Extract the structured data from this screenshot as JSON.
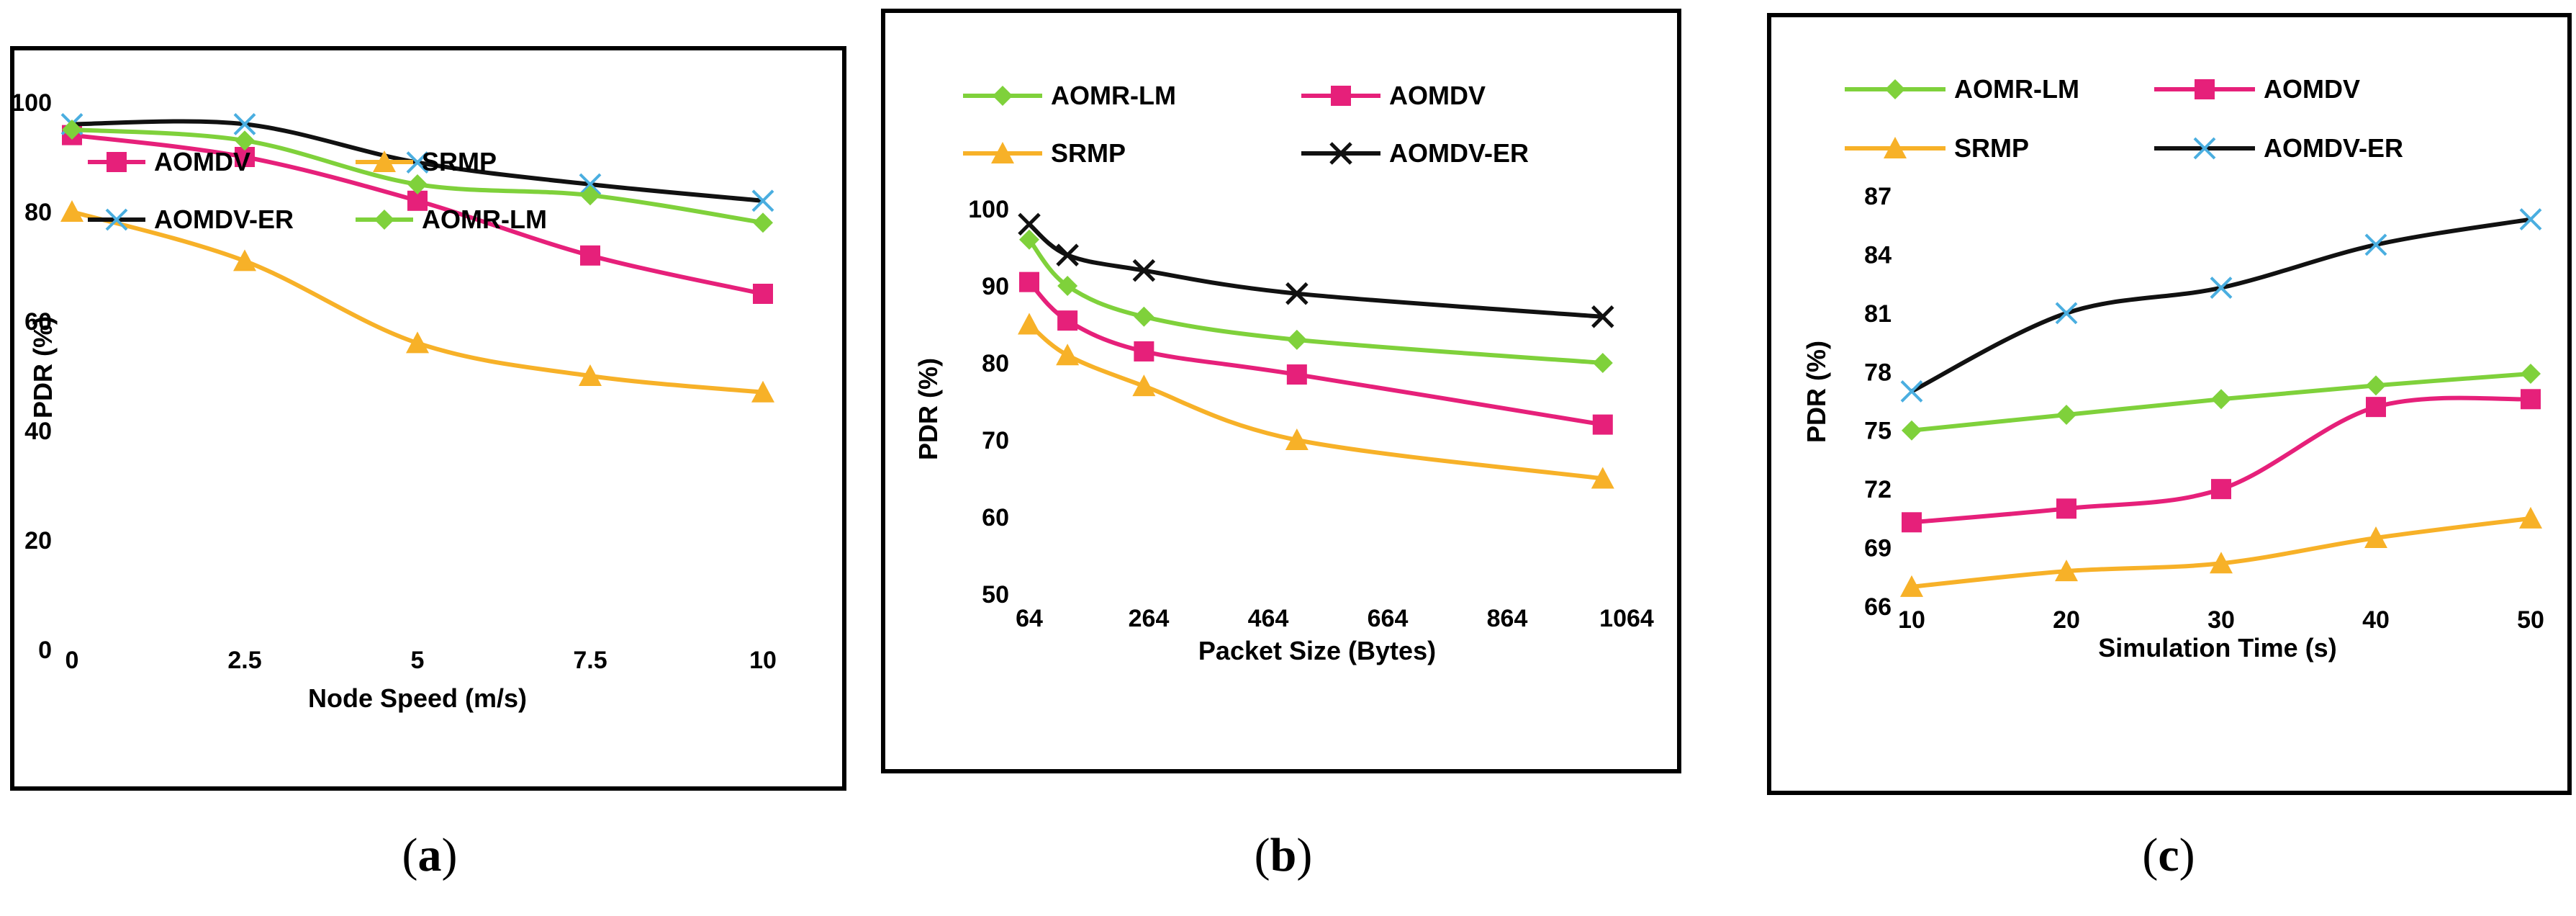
{
  "colors": {
    "AOMDV": "#e6207a",
    "SRMP": "#f7b128",
    "AOMDV-ER": "#111111",
    "AOMDV-ER_marker": "#4aaee0",
    "AOMR-LM": "#7fd13b"
  },
  "captions": {
    "a": {
      "open": "(",
      "letter": "a",
      "close": ")"
    },
    "b": {
      "open": "(",
      "letter": "b",
      "close": ")"
    },
    "c": {
      "open": "(",
      "letter": "c",
      "close": ")"
    }
  },
  "chart_data": [
    {
      "id": "a",
      "type": "line",
      "xlabel": "Node Speed (m/s)",
      "ylabel": "PDR (%)",
      "x": [
        0,
        2.5,
        5,
        7.5,
        10
      ],
      "x_tick_labels": [
        "0",
        "2.5",
        "5",
        "7.5",
        "10"
      ],
      "xlim": [
        0,
        10
      ],
      "ylim": [
        0,
        100
      ],
      "y_ticks": [
        0,
        20,
        40,
        60,
        80,
        100
      ],
      "y_tick_labels": [
        "0",
        "20",
        "40",
        "60",
        "80",
        "100"
      ],
      "legend": [
        {
          "name": "AOMDV"
        },
        {
          "name": "SRMP"
        },
        {
          "name": "AOMDV-ER"
        },
        {
          "name": "AOMR-LM"
        }
      ],
      "series": [
        {
          "name": "AOMDV",
          "marker": "square",
          "values": [
            94,
            90,
            82,
            72,
            65
          ]
        },
        {
          "name": "SRMP",
          "marker": "triangle",
          "values": [
            80,
            71,
            56,
            50,
            47
          ]
        },
        {
          "name": "AOMDV-ER",
          "marker": "asterisk",
          "values": [
            96,
            96,
            89,
            85,
            82
          ]
        },
        {
          "name": "AOMR-LM",
          "marker": "diamond",
          "values": [
            95,
            93,
            85,
            83,
            78
          ]
        }
      ]
    },
    {
      "id": "b",
      "type": "line",
      "xlabel": "Packet Size (Bytes)",
      "ylabel": "PDR (%)",
      "x_ticks": [
        64,
        264,
        464,
        664,
        864,
        1064
      ],
      "x_tick_labels": [
        "64",
        "264",
        "464",
        "664",
        "864",
        "1064"
      ],
      "xlim": [
        64,
        1064
      ],
      "ylim": [
        50,
        100
      ],
      "y_ticks": [
        50,
        60,
        70,
        80,
        90,
        100
      ],
      "y_tick_labels": [
        "50",
        "60",
        "70",
        "80",
        "90",
        "100"
      ],
      "legend": [
        {
          "name": "AOMR-LM"
        },
        {
          "name": "AOMDV"
        },
        {
          "name": "SRMP"
        },
        {
          "name": "AOMDV-ER"
        }
      ],
      "series": [
        {
          "name": "AOMR-LM",
          "marker": "diamond",
          "x": [
            64,
            128,
            256,
            512,
            1024
          ],
          "values": [
            96,
            90,
            86,
            83,
            80
          ]
        },
        {
          "name": "AOMDV",
          "marker": "square",
          "x": [
            64,
            128,
            256,
            512,
            1024
          ],
          "values": [
            90.5,
            85.5,
            81.5,
            78.5,
            72
          ]
        },
        {
          "name": "SRMP",
          "marker": "triangle",
          "x": [
            64,
            128,
            256,
            512,
            1024
          ],
          "values": [
            85,
            81,
            77,
            70,
            65
          ]
        },
        {
          "name": "AOMDV-ER",
          "marker": "x",
          "x": [
            64,
            128,
            256,
            512,
            1024
          ],
          "values": [
            98,
            94,
            92,
            89,
            86
          ]
        }
      ]
    },
    {
      "id": "c",
      "type": "line",
      "xlabel": "Simulation Time (s)",
      "ylabel": "PDR (%)",
      "x": [
        10,
        20,
        30,
        40,
        50
      ],
      "x_tick_labels": [
        "10",
        "20",
        "30",
        "40",
        "50"
      ],
      "xlim": [
        10,
        50
      ],
      "ylim": [
        66,
        87
      ],
      "y_ticks": [
        66,
        69,
        72,
        75,
        78,
        81,
        84,
        87
      ],
      "y_tick_labels": [
        "66",
        "69",
        "72",
        "75",
        "78",
        "81",
        "84",
        "87"
      ],
      "legend": [
        {
          "name": "AOMR-LM"
        },
        {
          "name": "AOMDV"
        },
        {
          "name": "SRMP"
        },
        {
          "name": "AOMDV-ER"
        }
      ],
      "series": [
        {
          "name": "AOMR-LM",
          "marker": "diamond",
          "values": [
            75,
            75.8,
            76.6,
            77.3,
            77.9
          ]
        },
        {
          "name": "AOMDV",
          "marker": "square",
          "values": [
            70.3,
            71,
            72,
            76.2,
            76.6
          ]
        },
        {
          "name": "SRMP",
          "marker": "triangle",
          "values": [
            67,
            67.8,
            68.2,
            69.5,
            70.5
          ]
        },
        {
          "name": "AOMDV-ER",
          "marker": "asterisk",
          "values": [
            77,
            81,
            82.3,
            84.5,
            85.8
          ]
        }
      ]
    }
  ]
}
